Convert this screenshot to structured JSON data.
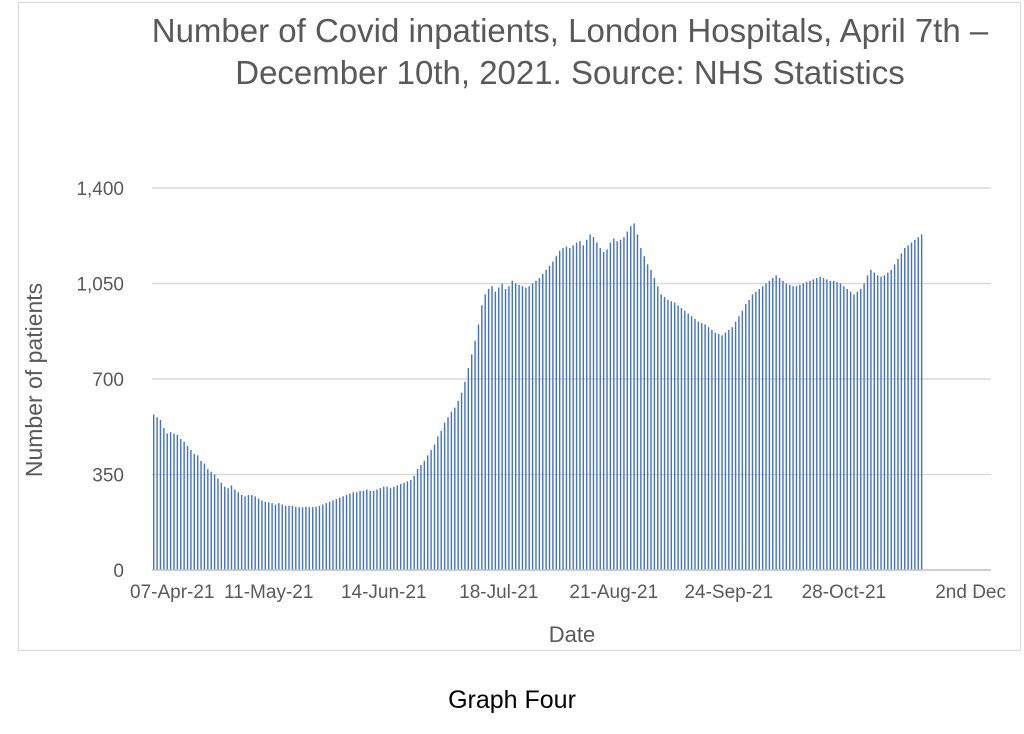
{
  "chart_data": {
    "type": "bar",
    "title": "Number of Covid inpatients, London Hospitals, April 7th – December 10th, 2021. Source: NHS Statistics",
    "xlabel": "Date",
    "ylabel": "Number of patients",
    "ylim": [
      0,
      1400
    ],
    "y_ticks": [
      "0",
      "350",
      "700",
      "1,050",
      "1,400"
    ],
    "grid": true,
    "legend": "none",
    "bar_color": "#4472c4",
    "x_tick_labels": [
      "07-Apr-21",
      "11-May-21",
      "14-Jun-21",
      "18-Jul-21",
      "21-Aug-21",
      "24-Sep-21",
      "28-Oct-21",
      "2nd Dec"
    ],
    "x_tick_dates": [
      "2021-04-07",
      "2021-05-11",
      "2021-06-14",
      "2021-07-18",
      "2021-08-21",
      "2021-09-24",
      "2021-10-28",
      "2021-12-02"
    ],
    "x_start": "2021-04-07",
    "x_end": "2021-12-10",
    "values": [
      570,
      560,
      550,
      520,
      500,
      505,
      500,
      495,
      480,
      470,
      455,
      440,
      425,
      420,
      400,
      390,
      370,
      360,
      350,
      335,
      320,
      305,
      300,
      310,
      295,
      285,
      275,
      270,
      275,
      275,
      270,
      262,
      255,
      250,
      248,
      245,
      240,
      245,
      240,
      235,
      235,
      235,
      232,
      230,
      230,
      232,
      230,
      230,
      232,
      235,
      240,
      245,
      250,
      255,
      260,
      265,
      270,
      275,
      280,
      285,
      285,
      290,
      290,
      295,
      290,
      290,
      295,
      300,
      305,
      305,
      300,
      305,
      310,
      315,
      320,
      325,
      330,
      345,
      370,
      385,
      400,
      420,
      440,
      460,
      490,
      510,
      540,
      560,
      580,
      595,
      620,
      650,
      690,
      740,
      790,
      840,
      900,
      970,
      1010,
      1030,
      1040,
      1020,
      1035,
      1050,
      1030,
      1040,
      1060,
      1050,
      1045,
      1040,
      1035,
      1040,
      1050,
      1060,
      1070,
      1085,
      1100,
      1115,
      1130,
      1150,
      1170,
      1180,
      1185,
      1180,
      1190,
      1200,
      1205,
      1190,
      1210,
      1230,
      1220,
      1200,
      1180,
      1165,
      1175,
      1200,
      1215,
      1205,
      1210,
      1220,
      1240,
      1260,
      1270,
      1230,
      1180,
      1150,
      1120,
      1100,
      1070,
      1040,
      1010,
      1000,
      990,
      985,
      980,
      970,
      960,
      950,
      940,
      930,
      920,
      910,
      905,
      900,
      890,
      880,
      870,
      865,
      860,
      870,
      880,
      890,
      910,
      930,
      950,
      975,
      990,
      1010,
      1020,
      1030,
      1040,
      1050,
      1060,
      1070,
      1080,
      1070,
      1060,
      1050,
      1045,
      1040,
      1040,
      1045,
      1050,
      1055,
      1060,
      1065,
      1070,
      1075,
      1070,
      1065,
      1060,
      1060,
      1055,
      1050,
      1040,
      1030,
      1020,
      1010,
      1020,
      1030,
      1050,
      1080,
      1100,
      1090,
      1080,
      1075,
      1080,
      1090,
      1100,
      1120,
      1140,
      1160,
      1180,
      1190,
      1200,
      1210,
      1220,
      1230
    ]
  },
  "caption": "Graph Four"
}
